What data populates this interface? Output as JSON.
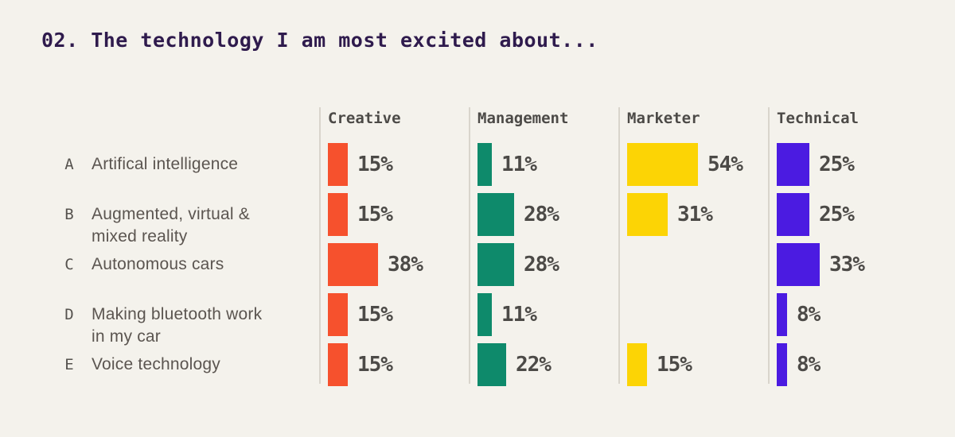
{
  "title": "02. The technology I am most excited about...",
  "colors": {
    "background": "#f4f2ec",
    "title": "#2f1b4d",
    "text_dark": "#4c4a47",
    "label_gray": "#5b5550",
    "divider": "#d9d5cc",
    "creative": "#f6512d",
    "management": "#0e8a6b",
    "marketer": "#fcd405",
    "technical": "#4b1be1"
  },
  "chart_data": {
    "type": "bar",
    "orientation": "horizontal",
    "title": "02. The technology I am most excited about...",
    "xlabel": "",
    "ylabel": "",
    "xlim": [
      0,
      100
    ],
    "grid": false,
    "legend_position": "column-headers-top",
    "value_suffix": "%",
    "categories": [
      {
        "key": "A",
        "label": "Artifical intelligence",
        "label_lines": [
          "Artifical intelligence"
        ]
      },
      {
        "key": "B",
        "label": "Augmented, virtual & mixed reality",
        "label_lines": [
          "Augmented, virtual &",
          "mixed reality"
        ]
      },
      {
        "key": "C",
        "label": "Autonomous cars",
        "label_lines": [
          "Autonomous cars"
        ]
      },
      {
        "key": "D",
        "label": "Making bluetooth work in my car",
        "label_lines": [
          "Making bluetooth work",
          "in my car"
        ]
      },
      {
        "key": "E",
        "label": "Voice technology",
        "label_lines": [
          "Voice technology"
        ]
      }
    ],
    "series": [
      {
        "name": "Creative",
        "color": "#f6512d",
        "values": [
          15,
          15,
          38,
          15,
          15
        ],
        "value_labels": [
          "15%",
          "15%",
          "38%",
          "15%",
          "15%"
        ]
      },
      {
        "name": "Management",
        "color": "#0e8a6b",
        "values": [
          11,
          28,
          28,
          11,
          22
        ],
        "value_labels": [
          "11%",
          "28%",
          "28%",
          "11%",
          "22%"
        ]
      },
      {
        "name": "Marketer",
        "color": "#fcd405",
        "values": [
          54,
          31,
          null,
          null,
          15
        ],
        "value_labels": [
          "54%",
          "31%",
          null,
          null,
          "15%"
        ]
      },
      {
        "name": "Technical",
        "color": "#4b1be1",
        "values": [
          25,
          25,
          33,
          8,
          8
        ],
        "value_labels": [
          "25%",
          "25%",
          "33%",
          "8%",
          "8%"
        ]
      }
    ]
  }
}
